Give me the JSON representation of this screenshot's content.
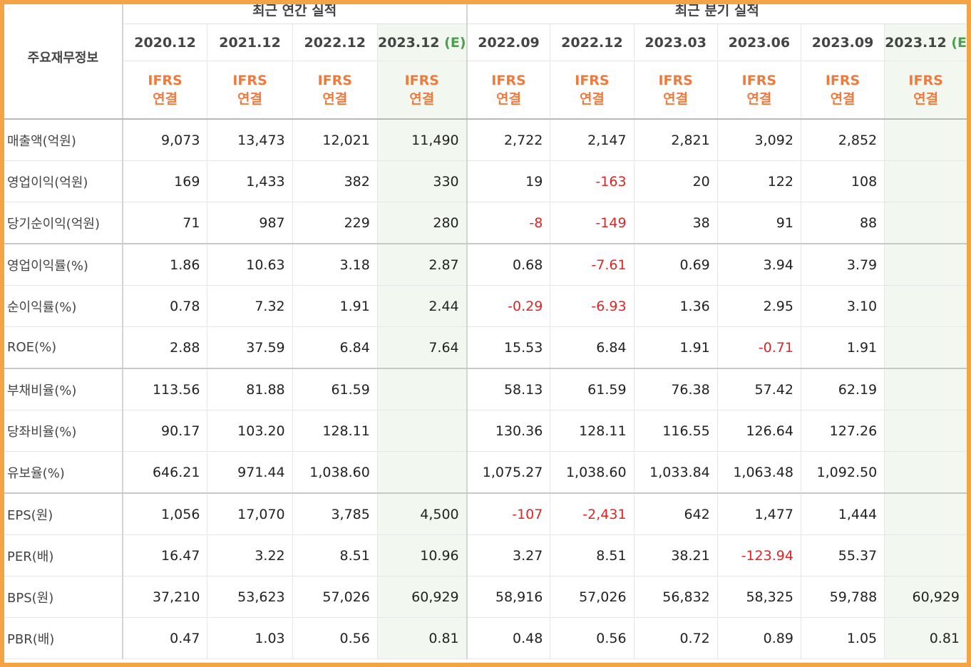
{
  "table": {
    "row_header": "주요재무정보",
    "groups": {
      "annual": "최근 연간 실적",
      "quarterly": "최근 분기 실적"
    },
    "columns": [
      {
        "period": "2020.12",
        "est": "",
        "basis1": "IFRS",
        "basis2": "연결"
      },
      {
        "period": "2021.12",
        "est": "",
        "basis1": "IFRS",
        "basis2": "연결"
      },
      {
        "period": "2022.12",
        "est": "",
        "basis1": "IFRS",
        "basis2": "연결"
      },
      {
        "period": "2023.12",
        "est": "(E)",
        "basis1": "IFRS",
        "basis2": "연결"
      },
      {
        "period": "2022.09",
        "est": "",
        "basis1": "IFRS",
        "basis2": "연결"
      },
      {
        "period": "2022.12",
        "est": "",
        "basis1": "IFRS",
        "basis2": "연결"
      },
      {
        "period": "2023.03",
        "est": "",
        "basis1": "IFRS",
        "basis2": "연결"
      },
      {
        "period": "2023.06",
        "est": "",
        "basis1": "IFRS",
        "basis2": "연결"
      },
      {
        "period": "2023.09",
        "est": "",
        "basis1": "IFRS",
        "basis2": "연결"
      },
      {
        "period": "2023.12",
        "est": "(E)",
        "basis1": "IFRS",
        "basis2": "연결"
      }
    ],
    "rows": [
      {
        "label": "매출액(억원)",
        "values": [
          "9,073",
          "13,473",
          "12,021",
          "11,490",
          "2,722",
          "2,147",
          "2,821",
          "3,092",
          "2,852",
          ""
        ]
      },
      {
        "label": "영업이익(억원)",
        "values": [
          "169",
          "1,433",
          "382",
          "330",
          "19",
          "-163",
          "20",
          "122",
          "108",
          ""
        ]
      },
      {
        "label": "당기순이익(억원)",
        "values": [
          "71",
          "987",
          "229",
          "280",
          "-8",
          "-149",
          "38",
          "91",
          "88",
          ""
        ]
      },
      {
        "label": "영업이익률(%)",
        "values": [
          "1.86",
          "10.63",
          "3.18",
          "2.87",
          "0.68",
          "-7.61",
          "0.69",
          "3.94",
          "3.79",
          ""
        ]
      },
      {
        "label": "순이익률(%)",
        "values": [
          "0.78",
          "7.32",
          "1.91",
          "2.44",
          "-0.29",
          "-6.93",
          "1.36",
          "2.95",
          "3.10",
          ""
        ]
      },
      {
        "label": "ROE(%)",
        "values": [
          "2.88",
          "37.59",
          "6.84",
          "7.64",
          "15.53",
          "6.84",
          "1.91",
          "-0.71",
          "1.91",
          ""
        ]
      },
      {
        "label": "부채비율(%)",
        "values": [
          "113.56",
          "81.88",
          "61.59",
          "",
          "58.13",
          "61.59",
          "76.38",
          "57.42",
          "62.19",
          ""
        ]
      },
      {
        "label": "당좌비율(%)",
        "values": [
          "90.17",
          "103.20",
          "128.11",
          "",
          "130.36",
          "128.11",
          "116.55",
          "126.64",
          "127.26",
          ""
        ]
      },
      {
        "label": "유보율(%)",
        "values": [
          "646.21",
          "971.44",
          "1,038.60",
          "",
          "1,075.27",
          "1,038.60",
          "1,033.84",
          "1,063.48",
          "1,092.50",
          ""
        ]
      },
      {
        "label": "EPS(원)",
        "values": [
          "1,056",
          "17,070",
          "3,785",
          "4,500",
          "-107",
          "-2,431",
          "642",
          "1,477",
          "1,444",
          ""
        ]
      },
      {
        "label": "PER(배)",
        "values": [
          "16.47",
          "3.22",
          "8.51",
          "10.96",
          "3.27",
          "8.51",
          "38.21",
          "-123.94",
          "55.37",
          ""
        ]
      },
      {
        "label": "BPS(원)",
        "values": [
          "37,210",
          "53,623",
          "57,026",
          "60,929",
          "58,916",
          "57,026",
          "56,832",
          "58,325",
          "59,788",
          "60,929"
        ]
      },
      {
        "label": "PBR(배)",
        "values": [
          "0.47",
          "1.03",
          "0.56",
          "0.81",
          "0.48",
          "0.56",
          "0.72",
          "0.89",
          "1.05",
          "0.81"
        ]
      }
    ]
  },
  "colors": {
    "frame": "#f4a445",
    "ifrs": "#f07a3c",
    "estimate": "#4aa04e",
    "negative": "#e02424",
    "estimate_bg": "#f2f8ef"
  }
}
